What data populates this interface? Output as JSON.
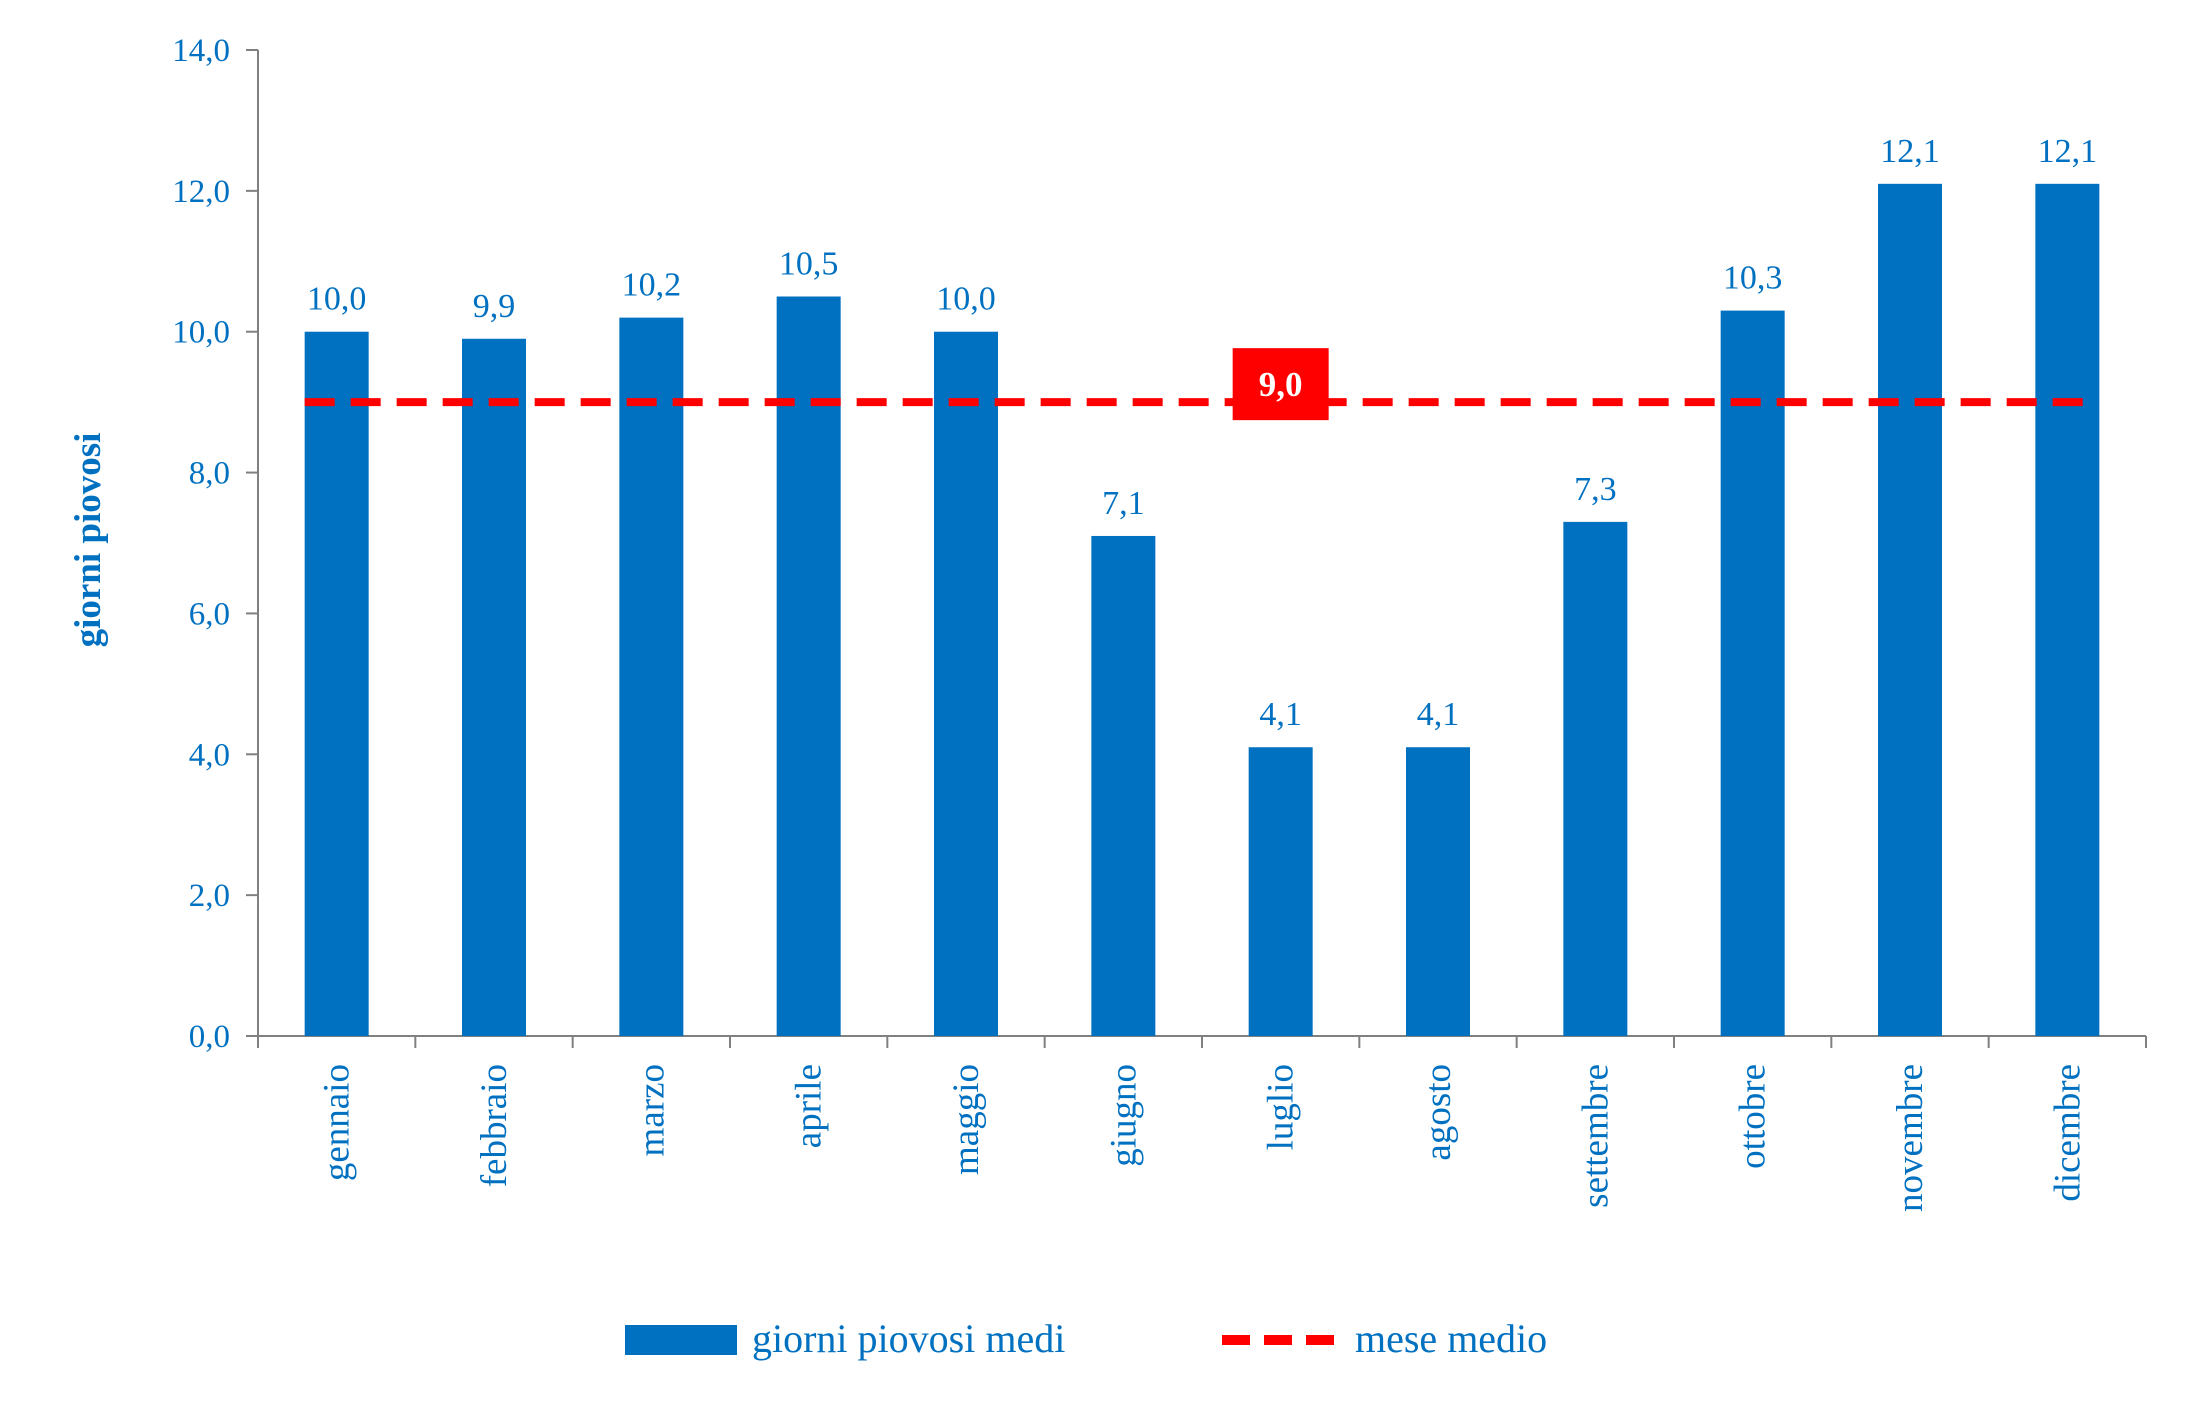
{
  "chart_data": {
    "type": "bar",
    "categories": [
      "gennaio",
      "febbraio",
      "marzo",
      "aprile",
      "maggio",
      "giugno",
      "luglio",
      "agosto",
      "settembre",
      "ottobre",
      "novembre",
      "dicembre"
    ],
    "series": [
      {
        "name": "giorni piovosi medi",
        "type": "bar",
        "values": [
          10.0,
          9.9,
          10.2,
          10.5,
          10.0,
          7.1,
          4.1,
          4.1,
          7.3,
          10.3,
          12.1,
          12.1
        ],
        "labels": [
          "10,0",
          "9,9",
          "10,2",
          "10,5",
          "10,0",
          "7,1",
          "4,1",
          "4,1",
          "7,3",
          "10,3",
          "12,1",
          "12,1"
        ]
      },
      {
        "name": "mese medio",
        "type": "line",
        "style": "dashed",
        "value": 9.0,
        "label": "9,0"
      }
    ],
    "ylabel": "giorni piovosi",
    "xlabel": "",
    "ylim": [
      0,
      14
    ],
    "yticks": [
      0,
      2,
      4,
      6,
      8,
      10,
      12,
      14
    ],
    "ytick_labels": [
      "0,0",
      "2,0",
      "4,0",
      "6,0",
      "8,0",
      "10,0",
      "12,0",
      "14,0"
    ],
    "grid": false,
    "legend_position": "bottom",
    "colors": {
      "bar": "#0070c0",
      "average_line": "#ff0000",
      "text": "#0070c0",
      "axis": "#808080",
      "avg_label_text": "#ffffff"
    }
  }
}
